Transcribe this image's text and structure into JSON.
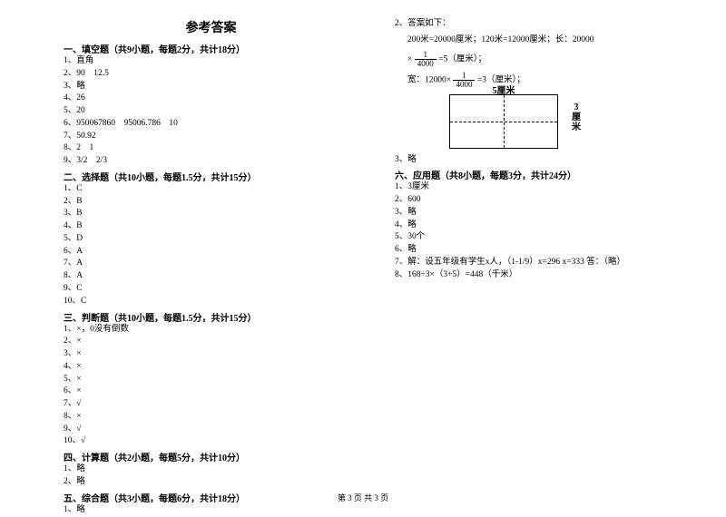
{
  "title": "参考答案",
  "footer": "第 3 页 共 3 页",
  "leftCol": {
    "s1": {
      "header": "一、填空题（共9小题，每题2分，共计18分）",
      "items": [
        "1、直角",
        "2、90　12.5",
        "3、略",
        "4、26",
        "5、20",
        "6、950067860　95006.786　10",
        "7、50.92",
        "8、2　1",
        "9、3/2　2/3"
      ]
    },
    "s2": {
      "header": "二、选择题（共10小题，每题1.5分，共计15分）",
      "items": [
        "1、C",
        "2、B",
        "3、B",
        "4、B",
        "5、D",
        "6、A",
        "7、A",
        "8、A",
        "9、C",
        "10、C"
      ]
    },
    "s3": {
      "header": "三、判断题（共10小题，每题1.5分，共计15分）",
      "items": [
        "1、×，0没有倒数",
        "2、×",
        "3、×",
        "4、×",
        "5、×",
        "6、×",
        "7、√",
        "8、×",
        "9、√",
        "10、√"
      ]
    },
    "s4": {
      "header": "四、计算题（共2小题，每题5分，共计10分）",
      "items": [
        "1、略",
        "2、略"
      ]
    },
    "s5": {
      "header": "五、综合题（共3小题，每题6分，共计18分）",
      "items": [
        "1、略"
      ]
    }
  },
  "rightCol": {
    "item2head": "2、答案如下：",
    "line1a": "200米=20000厘米；120米=12000厘米；长：20000",
    "line1b_pre": "× ",
    "frac1": {
      "num": "1",
      "den": "4000"
    },
    "line1b_post": " =5（厘米）；",
    "line2_pre": "宽：12000× ",
    "line2_post": " =3（厘米）；",
    "diagram": {
      "top": "5厘米",
      "right": "3厘米"
    },
    "item3": "3、略",
    "s6": {
      "header": "六、应用题（共8小题，每题3分，共计24分）",
      "items": [
        "1、3厘米",
        "2、600",
        "3、略",
        "4、略",
        "5、30个",
        "6、略",
        "7、解：设五年级有学生x人，（1-1/9）x=296 x=333 答：（略）",
        "8、168÷3×（3+5）=448（千米）"
      ]
    }
  }
}
